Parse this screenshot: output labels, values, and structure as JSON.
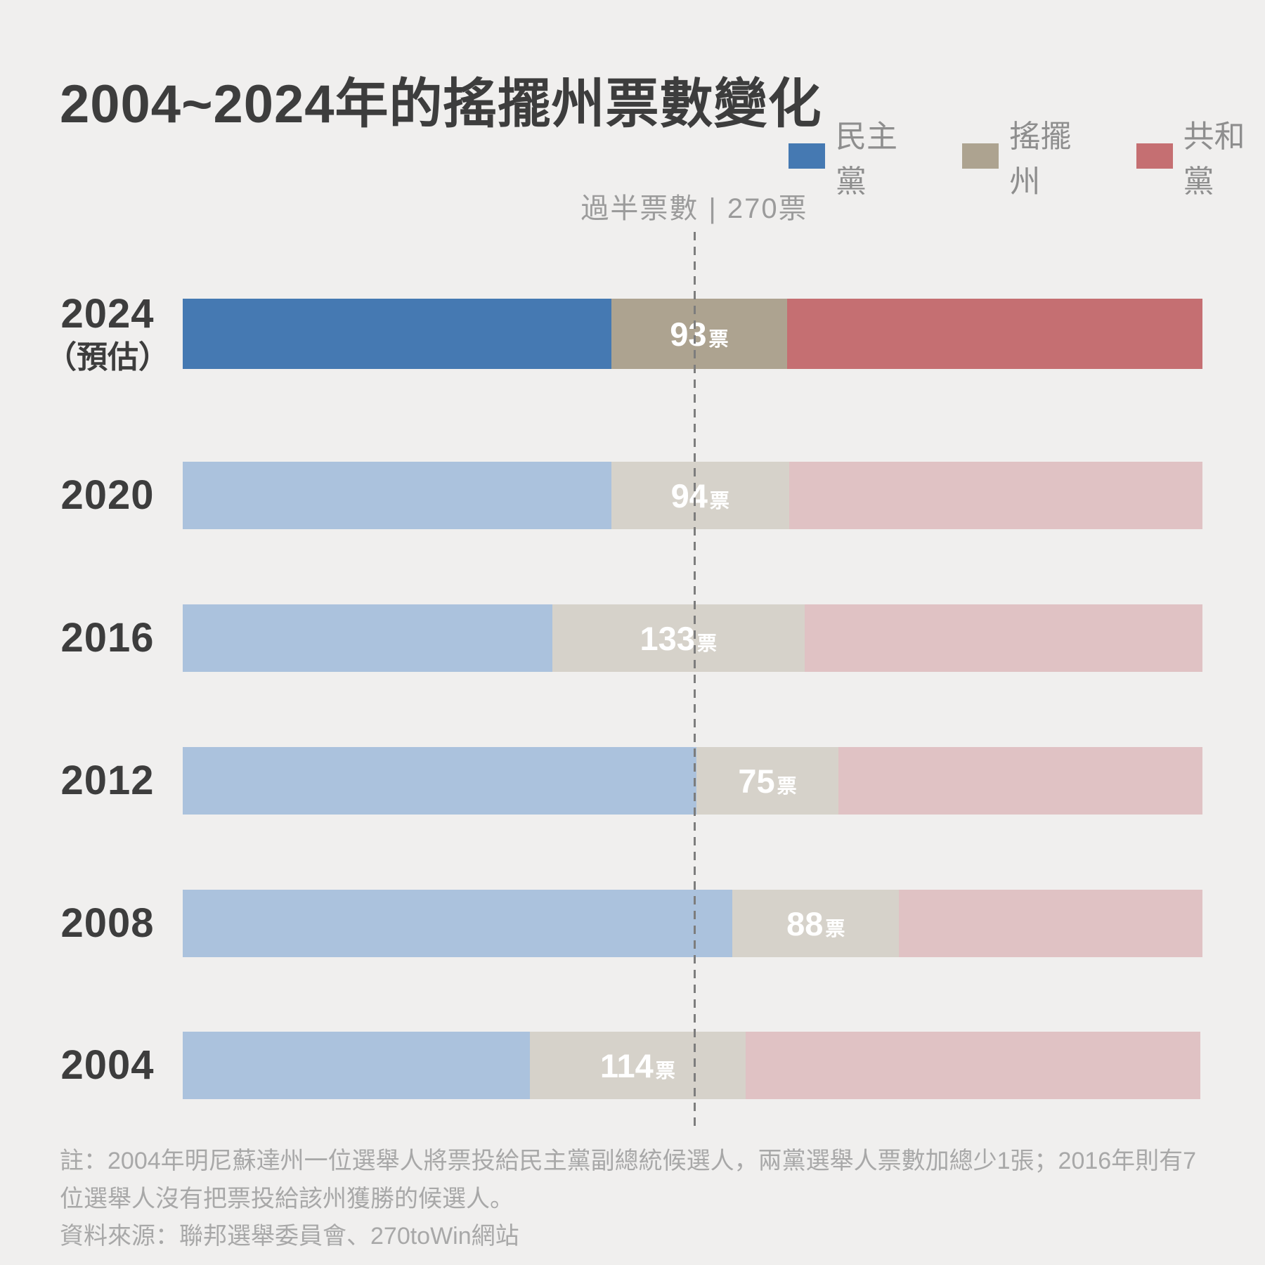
{
  "title": "2004~2024年的搖擺州票數變化",
  "legend": {
    "items": [
      {
        "key": "democratic",
        "label": "民主黨",
        "color": "#4579b2"
      },
      {
        "key": "swing",
        "label": "搖擺州",
        "color": "#ada390"
      },
      {
        "key": "republican",
        "label": "共和黨",
        "color": "#c56f72"
      }
    ]
  },
  "threshold": {
    "prefix": "過半票數",
    "divider": "|",
    "value_label": "270票",
    "votes": 270
  },
  "chart_data": {
    "type": "bar",
    "orientation": "horizontal",
    "stacked": true,
    "title": "2004~2024年的搖擺州票數變化",
    "total_votes_full": 538,
    "series_names": [
      "民主黨",
      "搖擺州",
      "共和黨"
    ],
    "threshold": {
      "votes": 270,
      "label": "過半票數 | 270票"
    },
    "unit": "票",
    "rows": [
      {
        "year": "2024",
        "year_note": "（預估）",
        "dem": 226,
        "swing": 93,
        "rep": 219,
        "swing_label_value": "93",
        "swing_label_unit": "票",
        "muted": false
      },
      {
        "year": "2020",
        "year_note": "",
        "dem": 226,
        "swing": 94,
        "rep": 218,
        "swing_label_value": "94",
        "swing_label_unit": "票",
        "muted": true
      },
      {
        "year": "2016",
        "year_note": "",
        "dem": 195,
        "swing": 133,
        "rep": 210,
        "swing_label_value": "133",
        "swing_label_unit": "票",
        "muted": true
      },
      {
        "year": "2012",
        "year_note": "",
        "dem": 271,
        "swing": 75,
        "rep": 192,
        "swing_label_value": "75",
        "swing_label_unit": "票",
        "muted": true
      },
      {
        "year": "2008",
        "year_note": "",
        "dem": 290,
        "swing": 88,
        "rep": 160,
        "swing_label_value": "88",
        "swing_label_unit": "票",
        "muted": true
      },
      {
        "year": "2004",
        "year_note": "",
        "dem": 183,
        "swing": 114,
        "rep": 240,
        "swing_label_value": "114",
        "swing_label_unit": "票",
        "muted": true
      }
    ],
    "colors": {
      "background": "#f0efee",
      "dem_strong": "#4579b2",
      "swing_strong": "#ada390",
      "rep_strong": "#c56f72",
      "dem_muted": "#abc2dd",
      "swing_muted": "#d6d2ca",
      "rep_muted": "#e0c2c4",
      "label_text": "#ffffff",
      "threshold_line": "#7d7d7d"
    }
  },
  "notes": {
    "note": "註：2004年明尼蘇達州一位選舉人將票投給民主黨副總統候選人，兩黨選舉人票數加總少1張；2016年則有7位選舉人沒有把票投給該州獲勝的候選人。",
    "source": "資料來源：聯邦選舉委員會、270toWin網站"
  }
}
